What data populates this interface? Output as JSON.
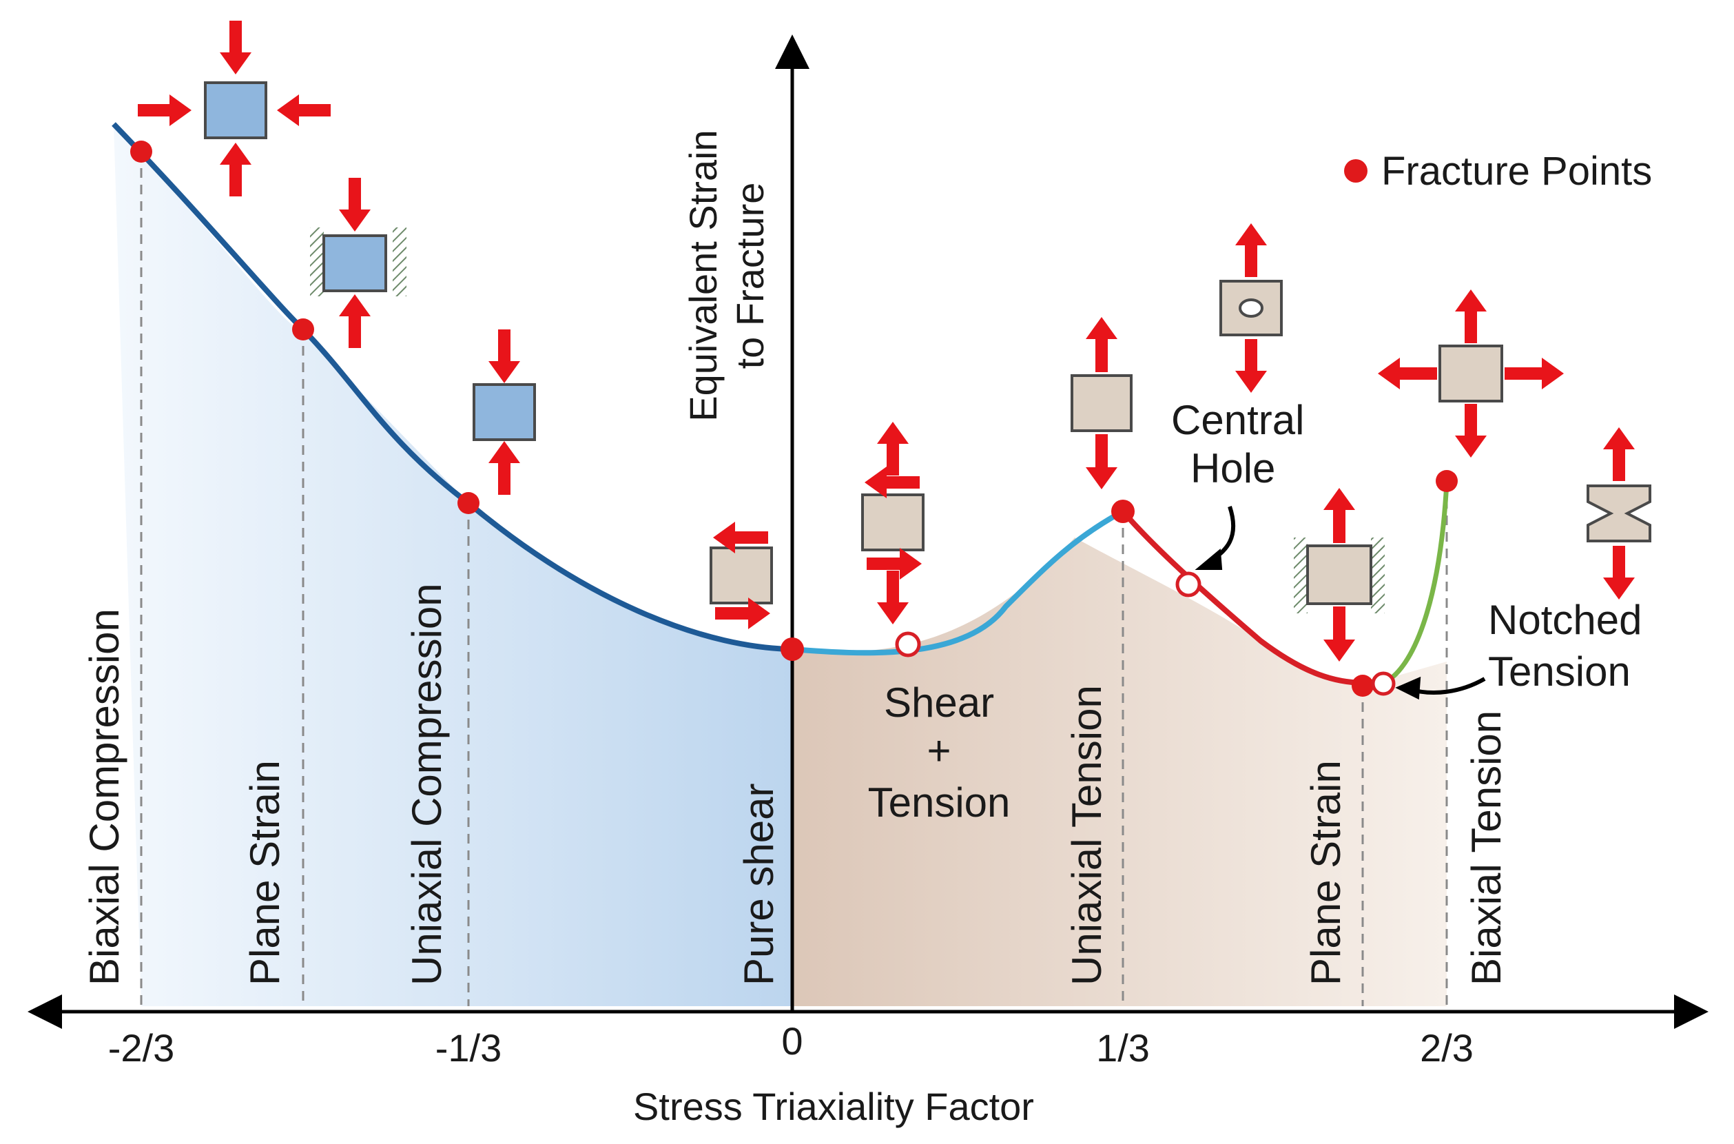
{
  "diagram": {
    "y_axis_title_lines": [
      "Equivalent Strain",
      "to Fracture"
    ],
    "x_axis_title": "Stress Triaxiality Factor",
    "x_ticks": [
      "-2/3",
      "-1/3",
      "0",
      "1/3",
      "2/3"
    ],
    "legend": {
      "label": "Fracture Points",
      "marker_color": "#e0191b"
    },
    "regions": {
      "biaxial_compression": "Biaxial Compression",
      "plane_strain_compression": "Plane Strain",
      "uniaxial_compression": "Uniaxial Compression",
      "pure_shear": "Pure shear",
      "uniaxial_tension": "Uniaxial Tension",
      "plane_strain_tension": "Plane Strain",
      "biaxial_tension": "Biaxial Tension"
    },
    "shear_tension_lines": [
      "Shear",
      "+",
      "Tension"
    ],
    "central_hole_lines": [
      "Central",
      "Hole"
    ],
    "notched_tension_lines": [
      "Notched",
      "Tension"
    ],
    "colors": {
      "compression_curve": "#1e5a96",
      "shear_curve": "#3aa7d6",
      "tension_curve": "#d71f26",
      "notched_curve": "#7ab648",
      "arrow": "#e8141a",
      "compression_box": "#8fb6dd",
      "tension_box": "#ddd1c4",
      "compression_fill": "#c9dcf0",
      "tension_fill": "#e6d6ca"
    }
  }
}
